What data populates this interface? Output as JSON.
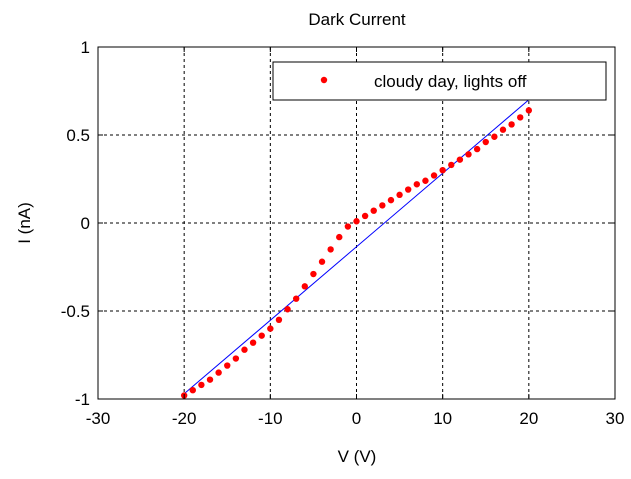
{
  "chart_data": {
    "type": "scatter",
    "title": "Dark Current",
    "xlabel": "V (V)",
    "ylabel": "I (nA)",
    "xlim": [
      -30,
      30
    ],
    "ylim": [
      -1,
      1
    ],
    "x_ticks": [
      "-30",
      "-20",
      "-10",
      "0",
      "10",
      "20",
      "30"
    ],
    "y_ticks": [
      "1",
      "0.5",
      "0",
      "-0.5",
      "-1"
    ],
    "x_tick_values": [
      -30,
      -20,
      -10,
      0,
      10,
      20,
      30
    ],
    "y_tick_values": [
      1,
      0.5,
      0,
      -0.5,
      -1
    ],
    "grid": true,
    "legend_position": "top-right",
    "series": [
      {
        "name": "cloudy day, lights off",
        "kind": "markers",
        "color": "#ff0000",
        "x": [
          -20,
          -19,
          -18,
          -17,
          -16,
          -15,
          -14,
          -13,
          -12,
          -11,
          -10,
          -9,
          -8,
          -7,
          -6,
          -5,
          -4,
          -3,
          -2,
          -1,
          0,
          1,
          2,
          3,
          4,
          5,
          6,
          7,
          8,
          9,
          10,
          11,
          12,
          13,
          14,
          15,
          16,
          17,
          18,
          19,
          20
        ],
        "y": [
          -0.98,
          -0.95,
          -0.92,
          -0.89,
          -0.85,
          -0.81,
          -0.77,
          -0.72,
          -0.68,
          -0.64,
          -0.6,
          -0.55,
          -0.49,
          -0.43,
          -0.36,
          -0.29,
          -0.22,
          -0.15,
          -0.08,
          -0.02,
          0.01,
          0.04,
          0.07,
          0.1,
          0.13,
          0.16,
          0.19,
          0.22,
          0.24,
          0.27,
          0.3,
          0.33,
          0.36,
          0.39,
          0.42,
          0.46,
          0.49,
          0.53,
          0.56,
          0.6,
          0.64
        ]
      },
      {
        "kind": "line",
        "color": "#0000ff",
        "x": [
          -20,
          20
        ],
        "y": [
          -0.97,
          0.7
        ]
      }
    ]
  }
}
